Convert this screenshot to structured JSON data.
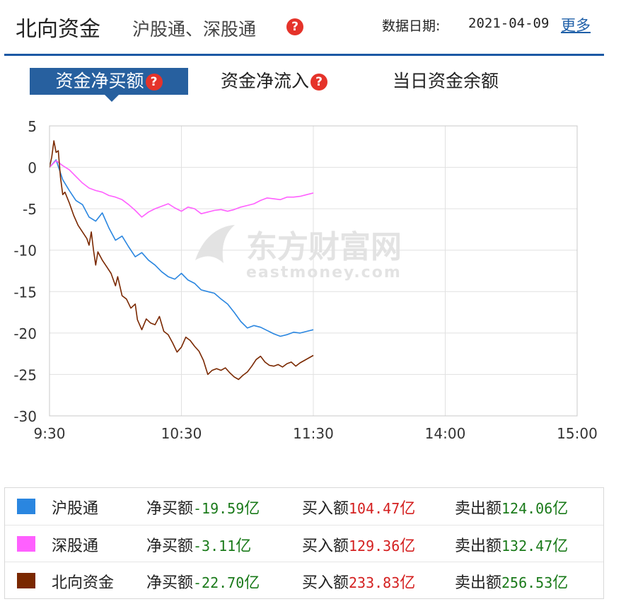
{
  "header": {
    "title": "北向资金",
    "subtitle": "沪股通、深股通",
    "help": "?",
    "date_label": "数据日期:",
    "date_value": "2021-04-09",
    "more": "更多"
  },
  "tabs": [
    {
      "label": "资金净买额",
      "active": true
    },
    {
      "label": "资金净流入",
      "active": false
    },
    {
      "label": "当日资金余额",
      "active": false
    }
  ],
  "watermark": {
    "cn": "东方财富网",
    "en": "eastmoney.com"
  },
  "chart_data": {
    "type": "line",
    "y_ticks": [
      "5",
      "0",
      "-5",
      "-10",
      "-15",
      "-20",
      "-25",
      "-30"
    ],
    "x_ticks": [
      "9:30",
      "10:30",
      "11:30",
      "14:00",
      "15:00"
    ],
    "ylim": [
      -30,
      5
    ],
    "grid": true,
    "series": [
      {
        "name": "沪股通",
        "color": "#2a86e0",
        "points": [
          [
            0,
            0.0
          ],
          [
            3,
            0.9
          ],
          [
            6,
            -1.5
          ],
          [
            9,
            -2.8
          ],
          [
            12,
            -4.0
          ],
          [
            15,
            -4.5
          ],
          [
            18,
            -6.0
          ],
          [
            21,
            -6.5
          ],
          [
            24,
            -5.5
          ],
          [
            27,
            -7.3
          ],
          [
            30,
            -8.8
          ],
          [
            33,
            -8.3
          ],
          [
            36,
            -9.6
          ],
          [
            39,
            -10.8
          ],
          [
            42,
            -10.3
          ],
          [
            45,
            -11.2
          ],
          [
            48,
            -11.8
          ],
          [
            51,
            -12.6
          ],
          [
            54,
            -13.2
          ],
          [
            57,
            -13.5
          ],
          [
            60,
            -12.8
          ],
          [
            63,
            -13.6
          ],
          [
            66,
            -14.0
          ],
          [
            69,
            -14.8
          ],
          [
            72,
            -15.0
          ],
          [
            75,
            -15.2
          ],
          [
            78,
            -15.9
          ],
          [
            81,
            -16.5
          ],
          [
            84,
            -17.5
          ],
          [
            87,
            -18.6
          ],
          [
            90,
            -19.4
          ],
          [
            93,
            -19.1
          ],
          [
            96,
            -19.3
          ],
          [
            99,
            -19.7
          ],
          [
            102,
            -20.1
          ],
          [
            105,
            -20.4
          ],
          [
            108,
            -20.2
          ],
          [
            111,
            -19.9
          ],
          [
            114,
            -20.0
          ],
          [
            117,
            -19.8
          ],
          [
            120,
            -19.6
          ]
        ]
      },
      {
        "name": "深股通",
        "color": "#ff60ff",
        "points": [
          [
            0,
            0.0
          ],
          [
            3,
            0.8
          ],
          [
            6,
            0.2
          ],
          [
            9,
            -0.3
          ],
          [
            12,
            -1.1
          ],
          [
            15,
            -1.9
          ],
          [
            18,
            -2.5
          ],
          [
            21,
            -2.8
          ],
          [
            24,
            -3.0
          ],
          [
            27,
            -3.4
          ],
          [
            30,
            -3.6
          ],
          [
            33,
            -3.9
          ],
          [
            36,
            -4.5
          ],
          [
            39,
            -5.2
          ],
          [
            42,
            -6.0
          ],
          [
            45,
            -5.4
          ],
          [
            48,
            -5.0
          ],
          [
            51,
            -4.7
          ],
          [
            54,
            -4.4
          ],
          [
            57,
            -4.9
          ],
          [
            60,
            -5.3
          ],
          [
            63,
            -4.8
          ],
          [
            66,
            -5.0
          ],
          [
            69,
            -5.6
          ],
          [
            72,
            -5.4
          ],
          [
            75,
            -5.2
          ],
          [
            78,
            -5.1
          ],
          [
            81,
            -5.3
          ],
          [
            84,
            -5.1
          ],
          [
            87,
            -4.8
          ],
          [
            90,
            -4.6
          ],
          [
            93,
            -4.4
          ],
          [
            96,
            -4.0
          ],
          [
            99,
            -3.7
          ],
          [
            102,
            -3.8
          ],
          [
            105,
            -3.9
          ],
          [
            108,
            -3.6
          ],
          [
            111,
            -3.6
          ],
          [
            114,
            -3.5
          ],
          [
            117,
            -3.3
          ],
          [
            120,
            -3.1
          ]
        ]
      },
      {
        "name": "北向资金",
        "color": "#7a2800",
        "points": [
          [
            0,
            0.0
          ],
          [
            1,
            1.2
          ],
          [
            2,
            3.2
          ],
          [
            3,
            1.8
          ],
          [
            4,
            2.0
          ],
          [
            5,
            -1.2
          ],
          [
            6,
            -3.3
          ],
          [
            7,
            -3.0
          ],
          [
            9,
            -4.3
          ],
          [
            11,
            -5.8
          ],
          [
            13,
            -7.0
          ],
          [
            15,
            -7.8
          ],
          [
            17,
            -8.6
          ],
          [
            18,
            -9.4
          ],
          [
            19,
            -7.8
          ],
          [
            20,
            -10.0
          ],
          [
            21,
            -11.8
          ],
          [
            22,
            -10.2
          ],
          [
            24,
            -11.2
          ],
          [
            26,
            -12.0
          ],
          [
            28,
            -12.8
          ],
          [
            30,
            -14.3
          ],
          [
            31,
            -13.2
          ],
          [
            33,
            -15.5
          ],
          [
            35,
            -15.9
          ],
          [
            37,
            -17.0
          ],
          [
            39,
            -16.5
          ],
          [
            40,
            -18.4
          ],
          [
            42,
            -19.6
          ],
          [
            44,
            -18.3
          ],
          [
            46,
            -18.8
          ],
          [
            48,
            -19.0
          ],
          [
            50,
            -18.0
          ],
          [
            52,
            -19.8
          ],
          [
            54,
            -20.2
          ],
          [
            56,
            -21.2
          ],
          [
            58,
            -22.3
          ],
          [
            60,
            -21.7
          ],
          [
            62,
            -20.5
          ],
          [
            64,
            -20.9
          ],
          [
            66,
            -21.6
          ],
          [
            68,
            -22.2
          ],
          [
            70,
            -23.3
          ],
          [
            72,
            -25.0
          ],
          [
            74,
            -24.5
          ],
          [
            76,
            -24.3
          ],
          [
            78,
            -24.5
          ],
          [
            80,
            -24.2
          ],
          [
            82,
            -24.8
          ],
          [
            84,
            -25.3
          ],
          [
            86,
            -25.6
          ],
          [
            88,
            -25.1
          ],
          [
            90,
            -24.7
          ],
          [
            92,
            -24.0
          ],
          [
            94,
            -23.2
          ],
          [
            96,
            -22.8
          ],
          [
            98,
            -23.5
          ],
          [
            100,
            -23.9
          ],
          [
            102,
            -24.0
          ],
          [
            104,
            -23.8
          ],
          [
            106,
            -24.1
          ],
          [
            108,
            -23.7
          ],
          [
            110,
            -23.5
          ],
          [
            112,
            -24.0
          ],
          [
            114,
            -23.6
          ],
          [
            116,
            -23.3
          ],
          [
            118,
            -23.0
          ],
          [
            120,
            -22.7
          ]
        ]
      }
    ]
  },
  "legend": {
    "rows": [
      {
        "name": "沪股通",
        "color": "#2a86e0",
        "net_label": "净买额",
        "net": "-19.59",
        "buy_label": "买入额",
        "buy": "104.47",
        "sell_label": "卖出额",
        "sell": "124.06",
        "unit": "亿"
      },
      {
        "name": "深股通",
        "color": "#ff60ff",
        "net_label": "净买额",
        "net": "-3.11",
        "buy_label": "买入额",
        "buy": "129.36",
        "sell_label": "卖出额",
        "sell": "132.47",
        "unit": "亿"
      },
      {
        "name": "北向资金",
        "color": "#7a2800",
        "net_label": "净买额",
        "net": "-22.70",
        "buy_label": "买入额",
        "buy": "233.83",
        "sell_label": "卖出额",
        "sell": "256.53",
        "unit": "亿"
      }
    ]
  }
}
